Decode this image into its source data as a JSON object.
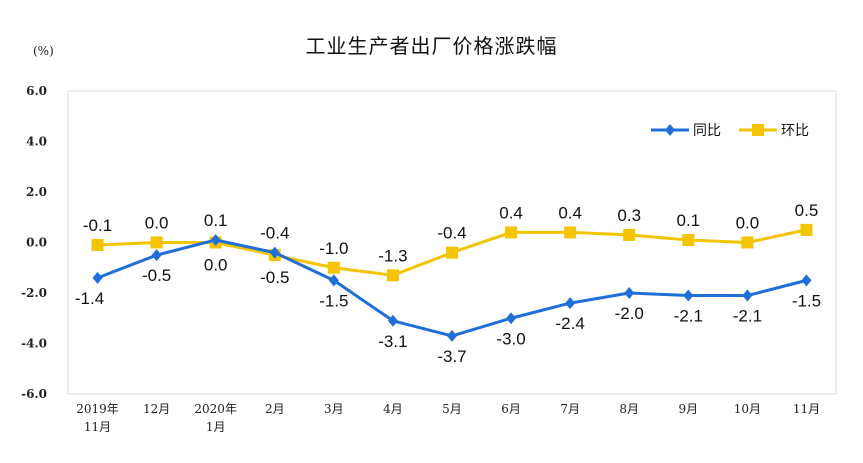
{
  "chart_data": {
    "type": "line",
    "title": "工业生产者出厂价格涨跌幅",
    "y_unit": "(%)",
    "ylim": [
      -6.0,
      6.0
    ],
    "yticks": [
      "6.0",
      "4.0",
      "2.0",
      "0.0",
      "-2.0",
      "-4.0",
      "-6.0"
    ],
    "categories": [
      [
        "2019年",
        "11月"
      ],
      [
        "12月"
      ],
      [
        "2020年",
        "1月"
      ],
      [
        "2月"
      ],
      [
        "3月"
      ],
      [
        "4月"
      ],
      [
        "5月"
      ],
      [
        "6月"
      ],
      [
        "7月"
      ],
      [
        "8月"
      ],
      [
        "9月"
      ],
      [
        "10月"
      ],
      [
        "11月"
      ]
    ],
    "series": [
      {
        "name": "同比",
        "color": "#1F6FD8",
        "marker": "diamond",
        "values": [
          -1.4,
          -0.5,
          0.1,
          -0.4,
          -1.5,
          -3.1,
          -3.7,
          -3.0,
          -2.4,
          -2.0,
          -2.1,
          -2.1,
          -1.5
        ],
        "labels": [
          "-1.4",
          "-0.5",
          "0.1",
          "-0.4",
          "-1.5",
          "-3.1",
          "-3.7",
          "-3.0",
          "-2.4",
          "-2.0",
          "-2.1",
          "-2.1",
          "-1.5"
        ]
      },
      {
        "name": "环比",
        "color": "#F5C400",
        "marker": "square",
        "values": [
          -0.1,
          0.0,
          0.0,
          -0.5,
          -1.0,
          -1.3,
          -0.4,
          0.4,
          0.4,
          0.3,
          0.1,
          0.0,
          0.5
        ],
        "labels": [
          "-0.1",
          "0.0",
          "0.0",
          "-0.5",
          "-1.0",
          "-1.3",
          "-0.4",
          "0.4",
          "0.4",
          "0.3",
          "0.1",
          "0.0",
          "0.5"
        ]
      }
    ],
    "legend_position": "top-right",
    "grid": false
  }
}
